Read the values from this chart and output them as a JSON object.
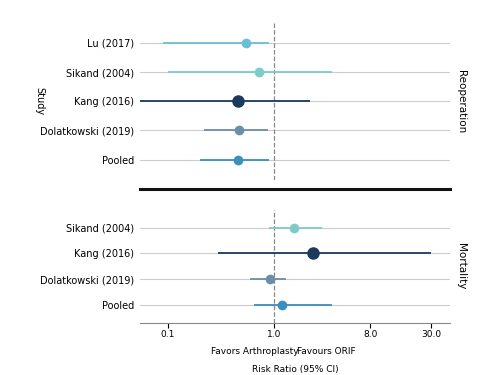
{
  "reoperation_studies": [
    {
      "label": "Lu (2017)",
      "rr": 0.55,
      "ci_lo": 0.09,
      "ci_hi": 0.9,
      "color": "#6BBFD4",
      "ms": 7
    },
    {
      "label": "Sikand (2004)",
      "rr": 0.72,
      "ci_lo": 0.1,
      "ci_hi": 3.5,
      "color": "#7DCCC8",
      "ms": 7
    },
    {
      "label": "Kang (2016)",
      "rr": 0.46,
      "ci_lo": 0.04,
      "ci_hi": 2.2,
      "color": "#1B3A5C",
      "ms": 9
    },
    {
      "label": "Dolatkowski (2019)",
      "rr": 0.47,
      "ci_lo": 0.22,
      "ci_hi": 0.88,
      "color": "#6B8FA8",
      "ms": 7
    },
    {
      "label": "Pooled",
      "rr": 0.46,
      "ci_lo": 0.2,
      "ci_hi": 0.9,
      "color": "#3A8FBF",
      "ms": 7
    }
  ],
  "mortality_studies": [
    {
      "label": "Sikand (2004)",
      "rr": 1.55,
      "ci_lo": 0.9,
      "ci_hi": 2.8,
      "color": "#7DCCC8",
      "ms": 7
    },
    {
      "label": "Kang (2016)",
      "rr": 2.3,
      "ci_lo": 0.3,
      "ci_hi": 30.0,
      "color": "#1B3A5C",
      "ms": 9
    },
    {
      "label": "Dolatkowski (2019)",
      "rr": 0.92,
      "ci_lo": 0.6,
      "ci_hi": 1.3,
      "color": "#6B8FA8",
      "ms": 7
    },
    {
      "label": "Pooled",
      "rr": 1.2,
      "ci_lo": 0.65,
      "ci_hi": 3.5,
      "color": "#3A8FBF",
      "ms": 7
    }
  ],
  "xmin": 0.055,
  "xmax": 45.0,
  "xtick_vals": [
    0.1,
    1.0,
    8.0,
    30.0
  ],
  "xtick_labels": [
    "0.1",
    "1.0",
    "8.0",
    "30.0"
  ],
  "xlabel1": "Favors Arthroplasty",
  "xlabel2": "Favours ORIF",
  "xlabel3": "Risk Ratio (95% CI)",
  "ref_line": 1.0,
  "section_label_reop": "Reoperation",
  "section_label_mort": "Mortality",
  "ylabel": "Study",
  "ci_linewidth": 1.3,
  "bg_color": "#FFFFFF",
  "row_line_color": "#CCCCCC",
  "divider_color": "#111111",
  "label_fontsize": 7.0,
  "axis_fontsize": 6.5,
  "section_fontsize": 7.5
}
